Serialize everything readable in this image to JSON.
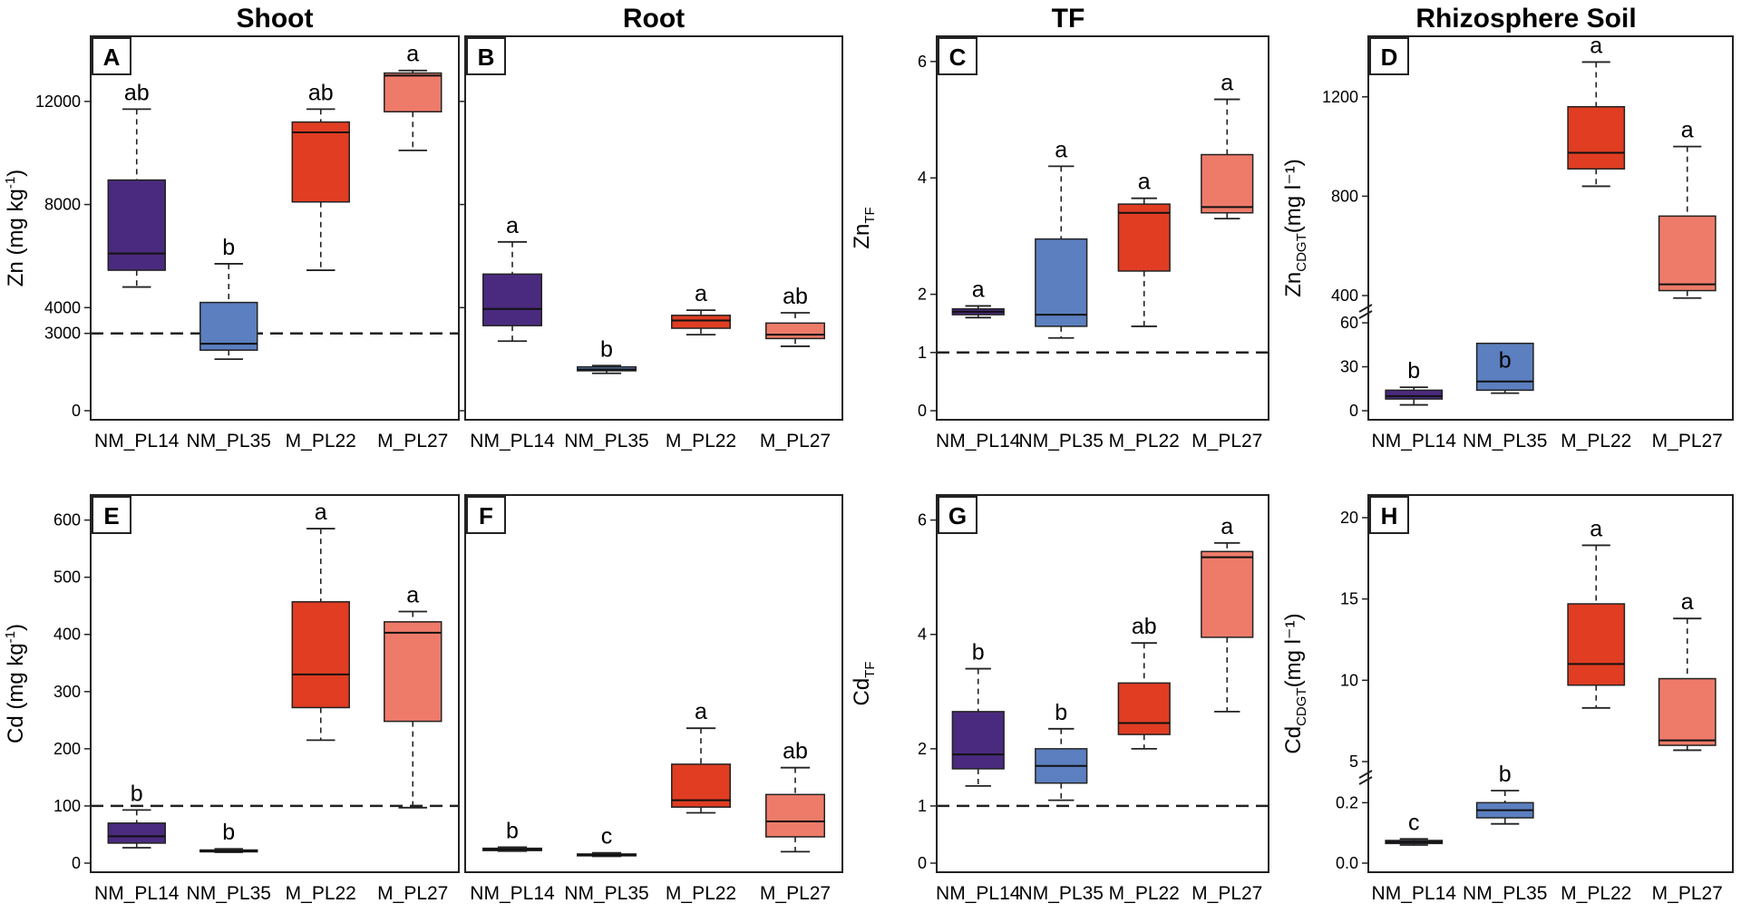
{
  "chart_data": {
    "type": "box",
    "column_titles": [
      "Shoot",
      "Root",
      "TF",
      "Rhizosphere Soil"
    ],
    "categories": [
      "NM_PL14",
      "NM_PL35",
      "M_PL22",
      "M_PL27"
    ],
    "colors": [
      "#4a2a7e",
      "#5b7fbf",
      "#e03d22",
      "#ee7b6a"
    ],
    "panels": [
      {
        "letter": "A",
        "row": 0,
        "col": 0,
        "ylabel_main": "Zn (mg kg",
        "ylabel_sup": "-1",
        "ylabel_sub": "",
        "ylabel_tail": ")",
        "ylim": [
          0,
          14000
        ],
        "yticks": [
          0,
          3000,
          4000,
          8000,
          12000
        ],
        "ytick_labels": [
          "0",
          "3000",
          "4000",
          "8000",
          "12000"
        ],
        "ytick_outside": true,
        "hline": 3000,
        "boxes": [
          {
            "min": 4800,
            "q1": 5450,
            "median": 6100,
            "q3": 8950,
            "max": 11700,
            "label": "ab"
          },
          {
            "min": 2000,
            "q1": 2350,
            "median": 2600,
            "q3": 4200,
            "max": 5700,
            "label": "b"
          },
          {
            "min": 5450,
            "q1": 8100,
            "median": 10800,
            "q3": 11200,
            "max": 11700,
            "label": "ab"
          },
          {
            "min": 10100,
            "q1": 11600,
            "median": 13000,
            "q3": 13100,
            "max": 13200,
            "label": "a"
          }
        ]
      },
      {
        "letter": "B",
        "row": 0,
        "col": 1,
        "ylabel_main": "",
        "ylabel_sup": "",
        "ylabel_sub": "",
        "ylabel_tail": "",
        "ylim": [
          0,
          14000
        ],
        "yticks": [
          0,
          4000,
          8000,
          12000
        ],
        "ytick_labels": [
          "",
          "",
          "",
          ""
        ],
        "ytick_outside": true,
        "hline": null,
        "boxes": [
          {
            "min": 2700,
            "q1": 3300,
            "median": 3950,
            "q3": 5300,
            "max": 6550,
            "label": "a"
          },
          {
            "min": 1450,
            "q1": 1550,
            "median": 1600,
            "q3": 1700,
            "max": 1750,
            "label": "b"
          },
          {
            "min": 2950,
            "q1": 3200,
            "median": 3500,
            "q3": 3700,
            "max": 3900,
            "label": "a"
          },
          {
            "min": 2500,
            "q1": 2800,
            "median": 2950,
            "q3": 3400,
            "max": 3800,
            "label": "ab"
          }
        ]
      },
      {
        "letter": "C",
        "row": 0,
        "col": 2,
        "ylabel_main": "Zn",
        "ylabel_sup": "",
        "ylabel_sub": "TF",
        "ylabel_tail": "",
        "ylim": [
          0,
          6.2
        ],
        "yticks": [
          0,
          1,
          2,
          4,
          6
        ],
        "ytick_labels": [
          "0",
          "1",
          "2",
          "4",
          "6"
        ],
        "ytick_outside": false,
        "hline": 1,
        "boxes": [
          {
            "min": 1.6,
            "q1": 1.65,
            "median": 1.7,
            "q3": 1.75,
            "max": 1.8,
            "label": "a"
          },
          {
            "min": 1.25,
            "q1": 1.45,
            "median": 1.65,
            "q3": 2.95,
            "max": 4.2,
            "label": "a"
          },
          {
            "min": 1.45,
            "q1": 2.4,
            "median": 3.4,
            "q3": 3.55,
            "max": 3.65,
            "label": "a"
          },
          {
            "min": 3.3,
            "q1": 3.4,
            "median": 3.5,
            "q3": 4.4,
            "max": 5.35,
            "label": "a"
          }
        ]
      },
      {
        "letter": "D",
        "row": 0,
        "col": 3,
        "ylabel_main": "Zn",
        "ylabel_sup": "",
        "ylabel_sub": "CDGT",
        "ylabel_tail": "(mg l⁻¹)",
        "ylim": [
          0,
          1400
        ],
        "yticks": [
          0,
          30,
          60,
          400,
          800,
          1200
        ],
        "ytick_labels": [
          "0",
          "30",
          "60",
          "400",
          "800",
          "1200"
        ],
        "ytick_outside": false,
        "hline": null,
        "broken_axis": true,
        "boxes": [
          {
            "min": 4,
            "q1": 8,
            "median": 10,
            "q3": 14,
            "max": 16,
            "label": "b"
          },
          {
            "min": 12,
            "q1": 14,
            "median": 20,
            "q3": 46,
            "max": 74,
            "label": "b"
          },
          {
            "min": 840,
            "q1": 910,
            "median": 975,
            "q3": 1160,
            "max": 1340,
            "label": "a"
          },
          {
            "min": 390,
            "q1": 420,
            "median": 445,
            "q3": 720,
            "max": 1000,
            "label": "a"
          }
        ]
      },
      {
        "letter": "E",
        "row": 1,
        "col": 0,
        "ylabel_main": "Cd (mg kg",
        "ylabel_sup": "-1",
        "ylabel_sub": "",
        "ylabel_tail": ")",
        "ylim": [
          0,
          620
        ],
        "yticks": [
          0,
          100,
          200,
          300,
          400,
          500,
          600
        ],
        "ytick_labels": [
          "0",
          "100",
          "200",
          "300",
          "400",
          "500",
          "600"
        ],
        "ytick_outside": false,
        "hline": 100,
        "boxes": [
          {
            "min": 27,
            "q1": 35,
            "median": 47,
            "q3": 70,
            "max": 93,
            "label": "b"
          },
          {
            "min": 19,
            "q1": 20,
            "median": 21,
            "q3": 23,
            "max": 25,
            "label": "b"
          },
          {
            "min": 215,
            "q1": 272,
            "median": 330,
            "q3": 457,
            "max": 585,
            "label": "a"
          },
          {
            "min": 97,
            "q1": 248,
            "median": 403,
            "q3": 422,
            "max": 440,
            "label": "a"
          }
        ]
      },
      {
        "letter": "F",
        "row": 1,
        "col": 1,
        "ylabel_main": "",
        "ylabel_sup": "",
        "ylabel_sub": "",
        "ylabel_tail": "",
        "ylim": [
          0,
          620
        ],
        "yticks": [],
        "ytick_labels": [],
        "ytick_outside": false,
        "hline": null,
        "boxes": [
          {
            "min": 21,
            "q1": 22,
            "median": 24,
            "q3": 26,
            "max": 28,
            "label": "b"
          },
          {
            "min": 12,
            "q1": 13,
            "median": 14,
            "q3": 16,
            "max": 18,
            "label": "c"
          },
          {
            "min": 88,
            "q1": 98,
            "median": 110,
            "q3": 173,
            "max": 236,
            "label": "a"
          },
          {
            "min": 20,
            "q1": 46,
            "median": 73,
            "q3": 120,
            "max": 167,
            "label": "ab"
          }
        ]
      },
      {
        "letter": "G",
        "row": 1,
        "col": 2,
        "ylabel_main": "Cd",
        "ylabel_sup": "",
        "ylabel_sub": "TF",
        "ylabel_tail": "",
        "ylim": [
          0,
          6.2
        ],
        "yticks": [
          0,
          1,
          2,
          4,
          6
        ],
        "ytick_labels": [
          "0",
          "1",
          "2",
          "4",
          "6"
        ],
        "ytick_outside": false,
        "hline": 1,
        "boxes": [
          {
            "min": 1.35,
            "q1": 1.65,
            "median": 1.9,
            "q3": 2.65,
            "max": 3.4,
            "label": "b"
          },
          {
            "min": 1.1,
            "q1": 1.4,
            "median": 1.7,
            "q3": 2.0,
            "max": 2.35,
            "label": "b"
          },
          {
            "min": 2.0,
            "q1": 2.25,
            "median": 2.45,
            "q3": 3.15,
            "max": 3.85,
            "label": "ab"
          },
          {
            "min": 2.65,
            "q1": 3.95,
            "median": 5.35,
            "q3": 5.45,
            "max": 5.6,
            "label": "a"
          }
        ]
      },
      {
        "letter": "H",
        "row": 1,
        "col": 3,
        "ylabel_main": "Cd",
        "ylabel_sup": "",
        "ylabel_sub": "CDGT",
        "ylabel_tail": "(mg l⁻¹)",
        "ylim": [
          0,
          20
        ],
        "yticks": [
          0.0,
          0.2,
          5,
          10,
          15,
          20
        ],
        "ytick_labels": [
          "0.0",
          "0.2",
          "5",
          "10",
          "15",
          "20"
        ],
        "ytick_outside": false,
        "hline": null,
        "broken_axis": true,
        "boxes": [
          {
            "min": 0.06,
            "q1": 0.065,
            "median": 0.07,
            "q3": 0.075,
            "max": 0.08,
            "label": "c"
          },
          {
            "min": 0.13,
            "q1": 0.15,
            "median": 0.175,
            "q3": 0.2,
            "max": 0.24,
            "label": "b"
          },
          {
            "min": 8.3,
            "q1": 9.7,
            "median": 11,
            "q3": 14.7,
            "max": 18.3,
            "label": "a"
          },
          {
            "min": 5.7,
            "q1": 6.0,
            "median": 6.3,
            "q3": 10.1,
            "max": 13.8,
            "label": "a"
          }
        ]
      }
    ]
  }
}
